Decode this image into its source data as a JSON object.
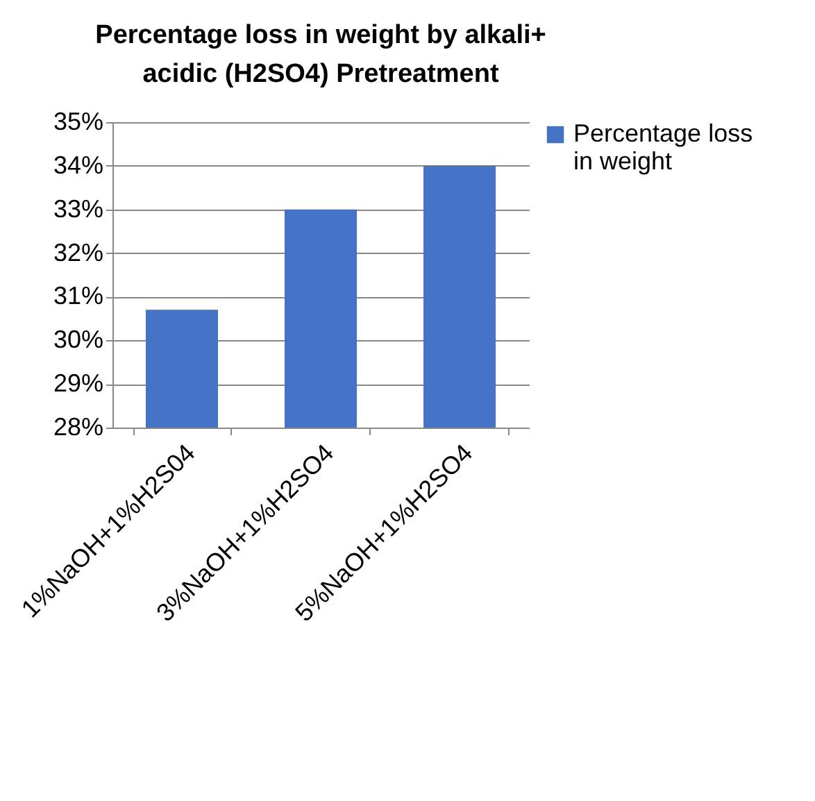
{
  "chart_data": {
    "type": "bar",
    "title": "Percentage loss in weight by alkali+ acidic (H2SO4) Pretreatment",
    "categories": [
      "1%NaOH+1%H2S04",
      "3%NaOH+1%H2SO4",
      "5%NaOH+1%H2SO4"
    ],
    "series": [
      {
        "name": "Percentage loss in weight",
        "color": "#4472c4",
        "values": [
          30.7,
          33,
          34
        ]
      }
    ],
    "ylim": [
      28,
      35
    ],
    "yticks": [
      {
        "value": 28,
        "label": "28%"
      },
      {
        "value": 29,
        "label": "29%"
      },
      {
        "value": 30,
        "label": "30%"
      },
      {
        "value": 31,
        "label": "31%"
      },
      {
        "value": 32,
        "label": "32%"
      },
      {
        "value": 33,
        "label": "33%"
      },
      {
        "value": 34,
        "label": "34%"
      },
      {
        "value": 35,
        "label": "35%"
      }
    ],
    "grid": "y",
    "legend": "right"
  }
}
